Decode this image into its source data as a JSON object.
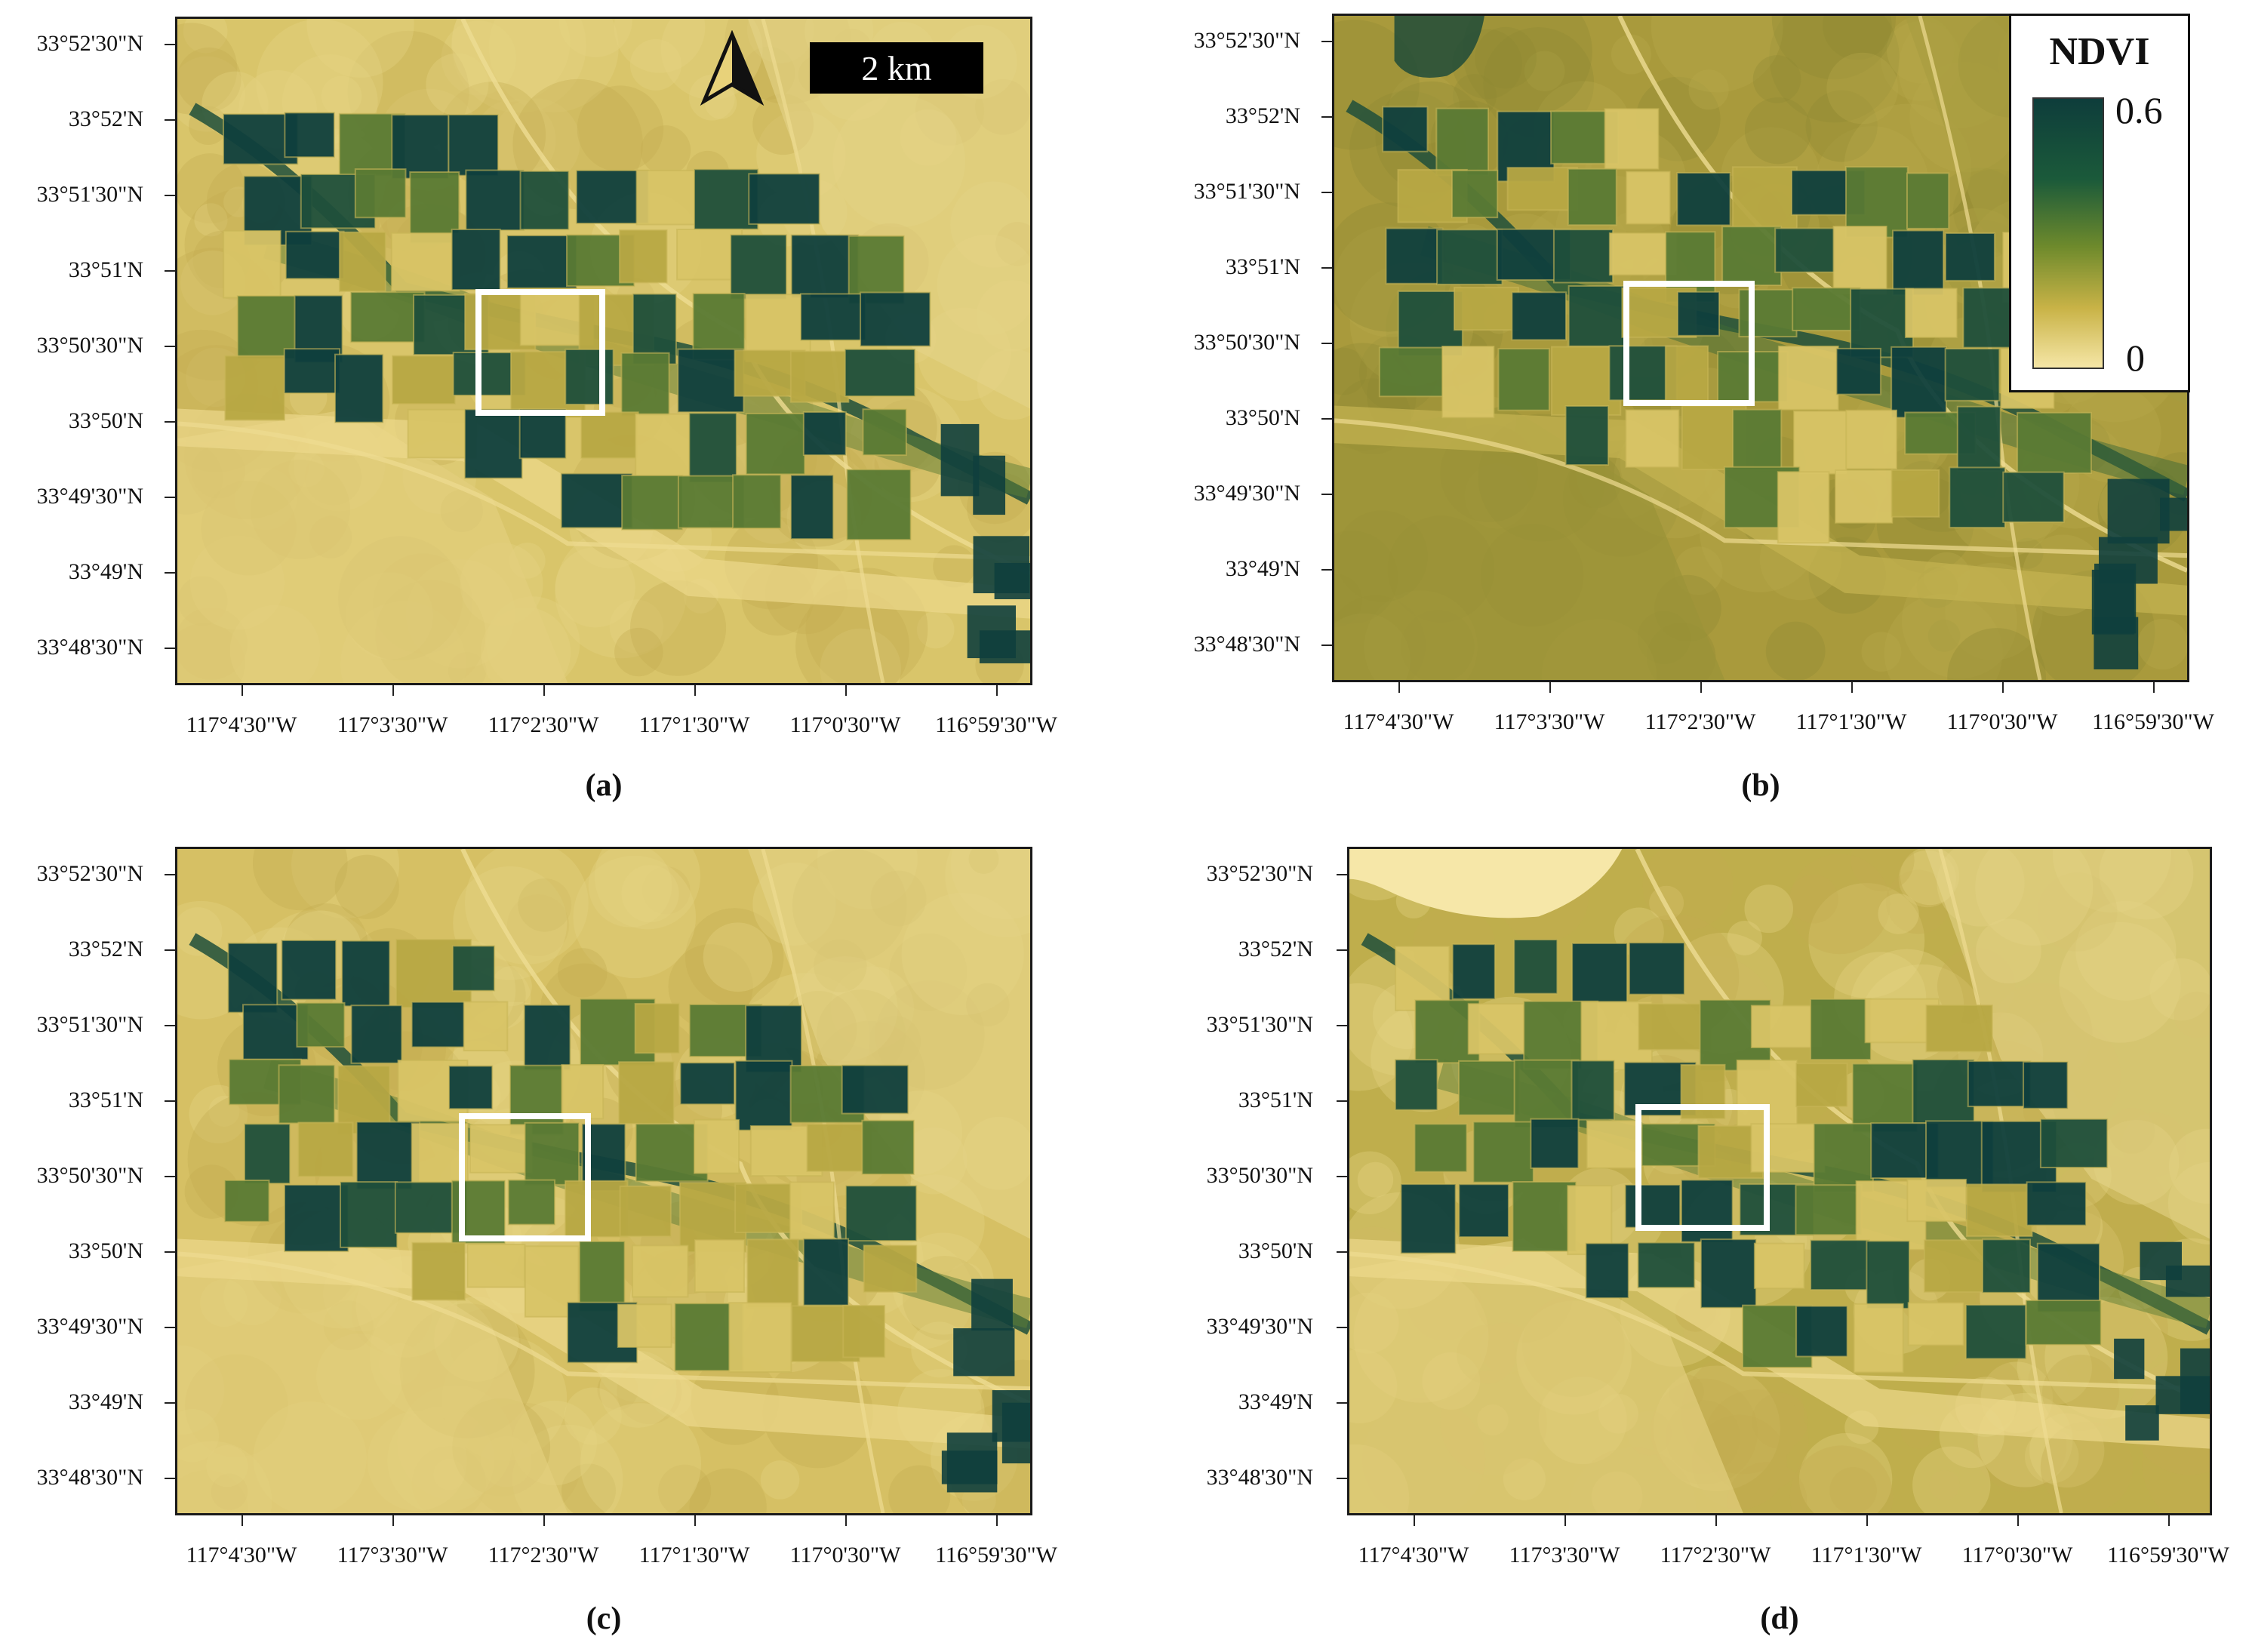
{
  "panels": [
    {
      "id": "a",
      "label": "(a)"
    },
    {
      "id": "b",
      "label": "(b)"
    },
    {
      "id": "c",
      "label": "(c)"
    },
    {
      "id": "d",
      "label": "(d)"
    }
  ],
  "latitude_ticks": [
    "33°52'30\"N",
    "33°52'N",
    "33°51'30\"N",
    "33°51'N",
    "33°50'30\"N",
    "33°50'N",
    "33°49'30\"N",
    "33°49'N",
    "33°48'30\"N"
  ],
  "longitude_ticks": [
    "117°4'30\"W",
    "117°3'30\"W",
    "117°2'30\"W",
    "117°1'30\"W",
    "117°0'30\"W",
    "116°59'30\"W"
  ],
  "scale_bar": {
    "label": "2 km"
  },
  "north_arrow": {
    "icon": "north-arrow-icon"
  },
  "legend": {
    "title": "NDVI",
    "max_label": "0.6",
    "min_label": "0",
    "colors": [
      "#0e3d3b",
      "#1b5a3a",
      "#6e8a2c",
      "#c9b347",
      "#f5e6a6"
    ]
  }
}
